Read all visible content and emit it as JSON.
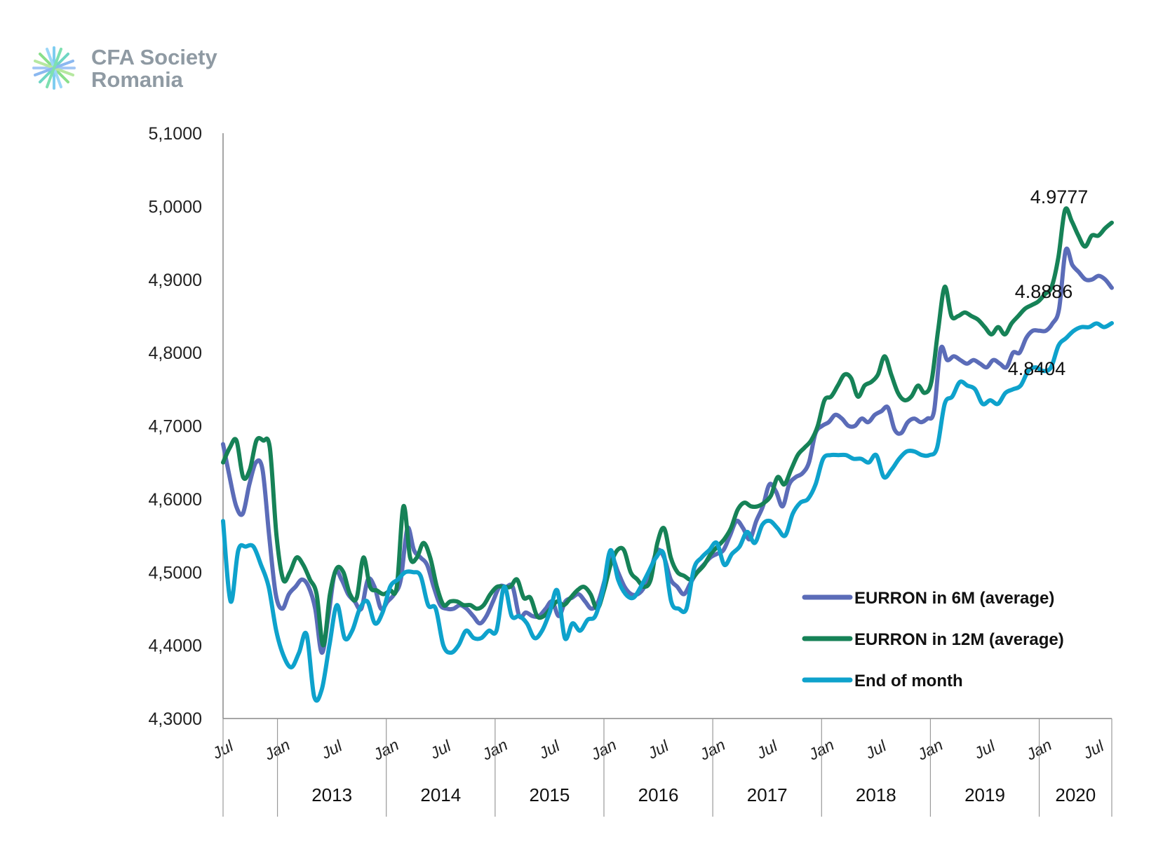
{
  "logo": {
    "line1": "CFA Society",
    "line2": "Romania"
  },
  "chart_data": {
    "type": "line",
    "title": "",
    "xlabel": "",
    "ylabel": "",
    "ylim": [
      4.3,
      5.1
    ],
    "y_ticks": [
      "5,1000",
      "5,0000",
      "4,9000",
      "4,8000",
      "4,7000",
      "4,6000",
      "4,5000",
      "4,4000",
      "4,3000"
    ],
    "x_tick_labels": [
      "Jul",
      "Jan",
      "Jul",
      "Jan",
      "Jul",
      "Jan",
      "Jul",
      "Jan",
      "Jul",
      "Jan",
      "Jul",
      "Jan",
      "Jul",
      "Jan",
      "Jul",
      "Jan",
      "Jul"
    ],
    "years": [
      "2013",
      "2014",
      "2015",
      "2016",
      "2017",
      "2018",
      "2019",
      "2020"
    ],
    "start": "2012-07",
    "end": "2020-09",
    "legend_position": "right-middle",
    "series": [
      {
        "name": "EURRON in 6M (average)",
        "color": "#5b6cb8",
        "values": [
          4.675,
          4.63,
          4.59,
          4.58,
          4.62,
          4.65,
          4.64,
          4.55,
          4.47,
          4.45,
          4.47,
          4.48,
          4.49,
          4.48,
          4.45,
          4.39,
          4.44,
          4.5,
          4.49,
          4.47,
          4.46,
          4.45,
          4.49,
          4.48,
          4.45,
          4.46,
          4.47,
          4.49,
          4.56,
          4.53,
          4.52,
          4.51,
          4.48,
          4.455,
          4.45,
          4.45,
          4.455,
          4.45,
          4.44,
          4.43,
          4.44,
          4.46,
          4.48,
          4.48,
          4.48,
          4.44,
          4.445,
          4.44,
          4.44,
          4.45,
          4.46,
          4.44,
          4.46,
          4.465,
          4.47,
          4.46,
          4.45,
          4.46,
          4.49,
          4.52,
          4.5,
          4.48,
          4.47,
          4.47,
          4.48,
          4.505,
          4.53,
          4.52,
          4.49,
          4.48,
          4.47,
          4.485,
          4.5,
          4.51,
          4.52,
          4.525,
          4.53,
          4.55,
          4.57,
          4.56,
          4.545,
          4.57,
          4.59,
          4.62,
          4.61,
          4.59,
          4.62,
          4.63,
          4.635,
          4.65,
          4.69,
          4.7,
          4.705,
          4.715,
          4.71,
          4.7,
          4.7,
          4.71,
          4.705,
          4.715,
          4.72,
          4.725,
          4.695,
          4.69,
          4.705,
          4.71,
          4.705,
          4.71,
          4.72,
          4.805,
          4.79,
          4.795,
          4.79,
          4.785,
          4.79,
          4.785,
          4.78,
          4.79,
          4.785,
          4.78,
          4.8,
          4.8,
          4.82,
          4.83,
          4.83,
          4.83,
          4.84,
          4.86,
          4.94,
          4.92,
          4.91,
          4.9,
          4.9,
          4.905,
          4.9,
          4.8886
        ]
      },
      {
        "name": "EURRON in 12M (average)",
        "color": "#168257",
        "values": [
          4.65,
          4.67,
          4.68,
          4.63,
          4.64,
          4.68,
          4.68,
          4.67,
          4.55,
          4.49,
          4.5,
          4.52,
          4.51,
          4.49,
          4.47,
          4.4,
          4.47,
          4.505,
          4.5,
          4.47,
          4.465,
          4.52,
          4.48,
          4.475,
          4.47,
          4.475,
          4.48,
          4.59,
          4.52,
          4.52,
          4.54,
          4.52,
          4.48,
          4.455,
          4.46,
          4.46,
          4.455,
          4.455,
          4.45,
          4.455,
          4.47,
          4.48,
          4.48,
          4.48,
          4.49,
          4.465,
          4.465,
          4.44,
          4.44,
          4.45,
          4.46,
          4.455,
          4.465,
          4.475,
          4.48,
          4.47,
          4.45,
          4.475,
          4.51,
          4.53,
          4.53,
          4.5,
          4.49,
          4.48,
          4.49,
          4.54,
          4.56,
          4.52,
          4.5,
          4.495,
          4.49,
          4.5,
          4.51,
          4.525,
          4.535,
          4.545,
          4.56,
          4.585,
          4.595,
          4.59,
          4.59,
          4.595,
          4.605,
          4.63,
          4.62,
          4.64,
          4.66,
          4.67,
          4.68,
          4.7,
          4.735,
          4.74,
          4.755,
          4.77,
          4.765,
          4.74,
          4.755,
          4.76,
          4.77,
          4.795,
          4.77,
          4.745,
          4.735,
          4.74,
          4.755,
          4.745,
          4.76,
          4.83,
          4.89,
          4.85,
          4.85,
          4.855,
          4.85,
          4.845,
          4.835,
          4.825,
          4.835,
          4.825,
          4.84,
          4.85,
          4.86,
          4.865,
          4.87,
          4.88,
          4.89,
          4.93,
          4.995,
          4.98,
          4.96,
          4.945,
          4.96,
          4.96,
          4.97,
          4.9777
        ]
      },
      {
        "name": "End of month",
        "color": "#0ea2cc",
        "values": [
          4.57,
          4.46,
          4.53,
          4.535,
          4.535,
          4.51,
          4.48,
          4.42,
          4.385,
          4.37,
          4.39,
          4.415,
          4.33,
          4.34,
          4.4,
          4.455,
          4.41,
          4.42,
          4.45,
          4.46,
          4.43,
          4.445,
          4.48,
          4.49,
          4.5,
          4.5,
          4.495,
          4.455,
          4.45,
          4.4,
          4.39,
          4.4,
          4.42,
          4.41,
          4.41,
          4.42,
          4.42,
          4.48,
          4.44,
          4.44,
          4.43,
          4.41,
          4.42,
          4.445,
          4.475,
          4.41,
          4.43,
          4.42,
          4.435,
          4.44,
          4.475,
          4.53,
          4.49,
          4.47,
          4.465,
          4.48,
          4.5,
          4.52,
          4.525,
          4.46,
          4.45,
          4.45,
          4.505,
          4.52,
          4.53,
          4.54,
          4.51,
          4.525,
          4.535,
          4.555,
          4.54,
          4.565,
          4.57,
          4.56,
          4.55,
          4.58,
          4.595,
          4.6,
          4.62,
          4.655,
          4.66,
          4.66,
          4.66,
          4.655,
          4.655,
          4.65,
          4.66,
          4.63,
          4.64,
          4.655,
          4.665,
          4.665,
          4.66,
          4.66,
          4.67,
          4.73,
          4.74,
          4.76,
          4.755,
          4.75,
          4.73,
          4.735,
          4.73,
          4.745,
          4.75,
          4.755,
          4.775,
          4.78,
          4.775,
          4.78,
          4.81,
          4.82,
          4.83,
          4.835,
          4.835,
          4.84,
          4.835,
          4.8404
        ]
      }
    ],
    "annotations": [
      {
        "text": "4.9777",
        "series": 1
      },
      {
        "text": "4.8886",
        "series": 0
      },
      {
        "text": "4.8404",
        "series": 2
      }
    ]
  }
}
